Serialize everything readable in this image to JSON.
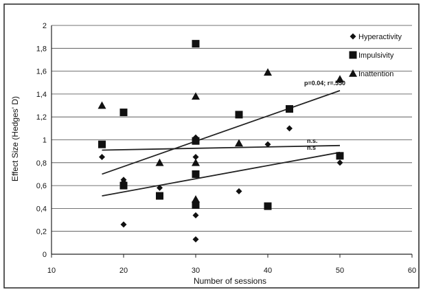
{
  "chart_data": {
    "type": "scatter",
    "title": "",
    "xlabel": "Number of sessions",
    "ylabel": "Effect Size (Hedges' D)",
    "xlim": [
      10,
      60
    ],
    "ylim": [
      0,
      2
    ],
    "xticks": [
      "10",
      "20",
      "30",
      "40",
      "50",
      "60"
    ],
    "yticks": [
      "0",
      "0,2",
      "0,4",
      "0,6",
      "0,8",
      "1",
      "1,2",
      "1,4",
      "1,6",
      "1,8",
      "2"
    ],
    "grid": "horizontal",
    "legend_position": "top-right",
    "series": [
      {
        "name": "Hyperactivity",
        "marker": "diamond",
        "points": [
          [
            17,
            0.85
          ],
          [
            20,
            0.65
          ],
          [
            20,
            0.63
          ],
          [
            20,
            0.26
          ],
          [
            25,
            0.58
          ],
          [
            30,
            1.02
          ],
          [
            30,
            0.85
          ],
          [
            30,
            0.34
          ],
          [
            30,
            0.13
          ],
          [
            36,
            0.55
          ],
          [
            40,
            0.96
          ],
          [
            43,
            1.1
          ],
          [
            50,
            0.8
          ]
        ]
      },
      {
        "name": "Impulsivity",
        "marker": "square",
        "points": [
          [
            17,
            0.96
          ],
          [
            20,
            1.24
          ],
          [
            20,
            0.6
          ],
          [
            25,
            0.51
          ],
          [
            30,
            1.84
          ],
          [
            30,
            0.99
          ],
          [
            30,
            0.7
          ],
          [
            30,
            0.43
          ],
          [
            36,
            1.22
          ],
          [
            40,
            0.42
          ],
          [
            43,
            1.27
          ],
          [
            50,
            0.86
          ]
        ]
      },
      {
        "name": "Inattention",
        "marker": "triangle",
        "points": [
          [
            17,
            1.3
          ],
          [
            25,
            0.8
          ],
          [
            30,
            1.38
          ],
          [
            30,
            0.8
          ],
          [
            30,
            0.48
          ],
          [
            36,
            0.97
          ],
          [
            40,
            1.59
          ],
          [
            50,
            1.53
          ]
        ]
      }
    ],
    "trendlines": [
      {
        "x": [
          17,
          50
        ],
        "y": [
          0.7,
          1.43
        ],
        "label": "p=0.04; r=.550"
      },
      {
        "x": [
          17,
          50
        ],
        "y": [
          0.91,
          0.95
        ],
        "label": "n.s."
      },
      {
        "x": [
          17,
          50
        ],
        "y": [
          0.51,
          0.89
        ],
        "label": "n.s"
      }
    ],
    "colors": {
      "marker": "#111111",
      "line": "#222222",
      "grid": "#444444"
    }
  }
}
